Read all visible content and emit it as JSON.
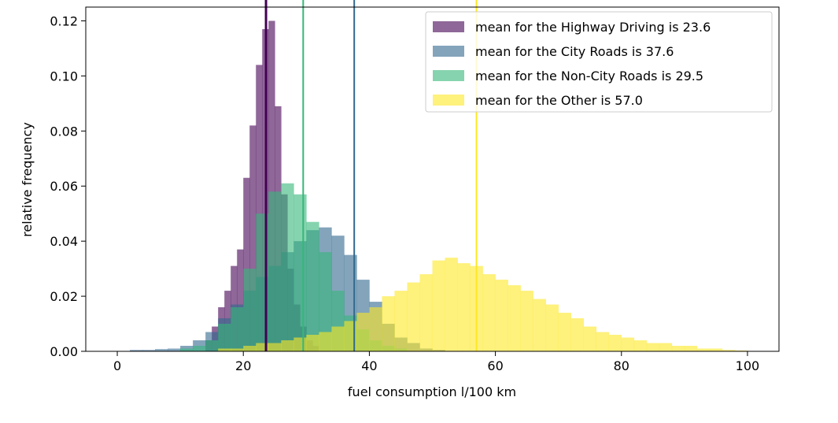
{
  "chart_data": {
    "type": "histogram",
    "title": "",
    "xlabel": "fuel consumption l/100 km",
    "ylabel": "relative frequency",
    "xlim": [
      -5,
      105
    ],
    "ylim": [
      0,
      0.125
    ],
    "xticks": [
      0,
      20,
      40,
      60,
      80,
      100
    ],
    "xtick_labels": [
      "0",
      "20",
      "40",
      "60",
      "80",
      "100"
    ],
    "yticks": [
      0.0,
      0.02,
      0.04,
      0.06,
      0.08,
      0.1,
      0.12
    ],
    "ytick_labels": [
      "0.00",
      "0.02",
      "0.04",
      "0.06",
      "0.08",
      "0.10",
      "0.12"
    ],
    "grid": false,
    "legend_position": "top-right",
    "series": [
      {
        "name": "mean for the Highway Driving is 23.6",
        "mean": 23.6,
        "color": "#440154",
        "bin_width": 1,
        "bin_start": 14,
        "values": [
          0.004,
          0.009,
          0.016,
          0.022,
          0.031,
          0.037,
          0.063,
          0.082,
          0.104,
          0.117,
          0.12,
          0.089,
          0.057,
          0.03,
          0.017,
          0.009,
          0.004,
          0.002
        ]
      },
      {
        "name": "mean for the City Roads is 37.6",
        "mean": 37.6,
        "color": "#31688e",
        "bin_width": 2,
        "bin_start": 2,
        "values": [
          0.0005,
          0.0005,
          0.0008,
          0.001,
          0.002,
          0.004,
          0.007,
          0.012,
          0.017,
          0.022,
          0.027,
          0.031,
          0.036,
          0.04,
          0.044,
          0.045,
          0.042,
          0.035,
          0.026,
          0.018,
          0.01,
          0.005,
          0.003,
          0.001,
          0.0005
        ]
      },
      {
        "name": "mean for the Non-City Roads is 29.5",
        "mean": 29.5,
        "color": "#35b779",
        "bin_width": 2,
        "bin_start": 10,
        "values": [
          0.001,
          0.002,
          0.004,
          0.01,
          0.016,
          0.03,
          0.05,
          0.058,
          0.061,
          0.057,
          0.047,
          0.036,
          0.022,
          0.013,
          0.008,
          0.004,
          0.002,
          0.001
        ]
      },
      {
        "name": "mean for the Other is 57.0",
        "mean": 57.0,
        "color": "#fde725",
        "bin_width": 2,
        "bin_start": 16,
        "values": [
          0.001,
          0.001,
          0.002,
          0.003,
          0.003,
          0.004,
          0.005,
          0.006,
          0.007,
          0.009,
          0.011,
          0.014,
          0.016,
          0.02,
          0.022,
          0.025,
          0.028,
          0.033,
          0.034,
          0.032,
          0.031,
          0.028,
          0.026,
          0.024,
          0.022,
          0.019,
          0.017,
          0.014,
          0.012,
          0.009,
          0.007,
          0.006,
          0.005,
          0.004,
          0.003,
          0.003,
          0.002,
          0.002,
          0.001,
          0.001,
          0.0005,
          0.0003
        ]
      }
    ]
  }
}
